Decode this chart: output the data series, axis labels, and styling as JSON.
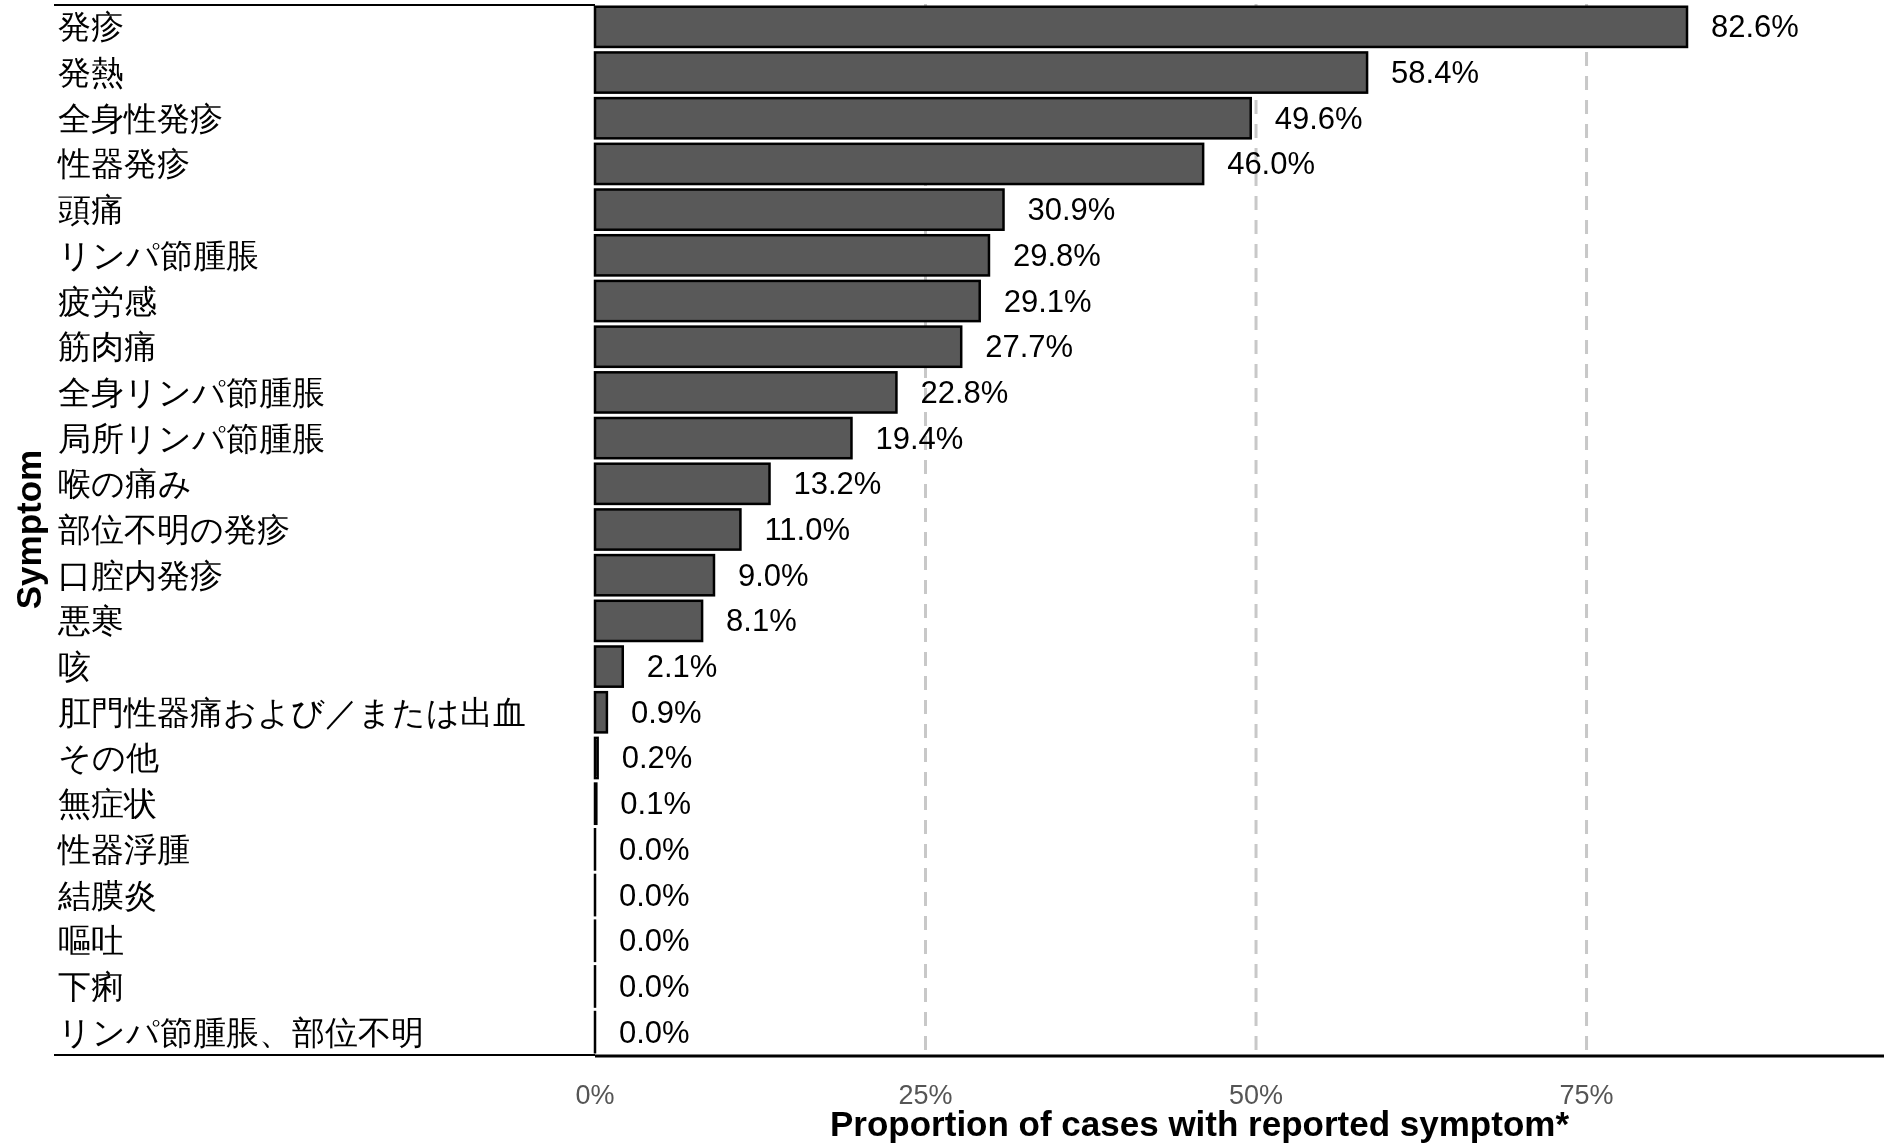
{
  "chart_data": {
    "type": "bar",
    "orientation": "horizontal",
    "xlabel": "Proportion of cases with reported symptom*",
    "ylabel": "Symptom",
    "categories": [
      "発疹",
      "発熱",
      "全身性発疹",
      "性器発疹",
      "頭痛",
      "リンパ節腫脹",
      "疲労感",
      "筋肉痛",
      "全身リンパ節腫脹",
      "局所リンパ節腫脹",
      "喉の痛み",
      "部位不明の発疹",
      "口腔内発疹",
      "悪寒",
      "咳",
      "肛門性器痛および／または出血",
      "その他",
      "無症状",
      "性器浮腫",
      "結膜炎",
      "嘔吐",
      "下痢",
      "リンパ節腫脹、部位不明"
    ],
    "values": [
      82.6,
      58.4,
      49.6,
      46.0,
      30.9,
      29.8,
      29.1,
      27.7,
      22.8,
      19.4,
      13.2,
      11.0,
      9.0,
      8.1,
      2.1,
      0.9,
      0.2,
      0.1,
      0.0,
      0.0,
      0.0,
      0.0,
      0.0
    ],
    "value_labels": [
      "82.6%",
      "58.4%",
      "49.6%",
      "46.0%",
      "30.9%",
      "29.8%",
      "29.1%",
      "27.7%",
      "22.8%",
      "19.4%",
      "13.2%",
      "11.0%",
      "9.0%",
      "8.1%",
      "2.1%",
      "0.9%",
      "0.2%",
      "0.1%",
      "0.0%",
      "0.0%",
      "0.0%",
      "0.0%",
      "0.0%"
    ],
    "color": "#595959",
    "xlim": [
      0,
      97.5
    ],
    "xticks": [
      {
        "value": 0,
        "label": "0%"
      },
      {
        "value": 25,
        "label": "25%"
      },
      {
        "value": 50,
        "label": "50%"
      },
      {
        "value": 75,
        "label": "75%"
      }
    ],
    "grid": "x"
  }
}
